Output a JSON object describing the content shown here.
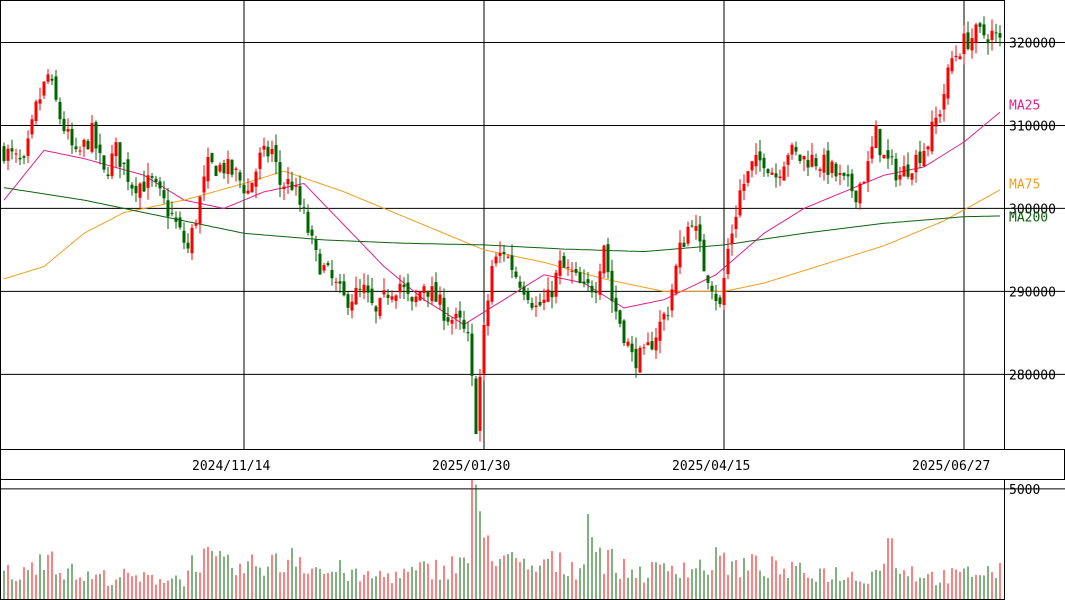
{
  "chart_data": {
    "type": "candlestick",
    "title": "",
    "colors": {
      "up": "#ff0000",
      "down": "#006400",
      "ma25": "#e0208c",
      "ma75": "#f0a020",
      "ma200": "#106010",
      "grid": "#000000"
    },
    "price_axis": {
      "ylim": [
        271000,
        325000
      ],
      "ticks": [
        280000,
        290000,
        300000,
        310000,
        320000
      ],
      "tick_labels": [
        "280000",
        "290000",
        "300000",
        "310000",
        "320000"
      ]
    },
    "volume_axis": {
      "ylim": [
        0,
        5400
      ],
      "ticks": [
        5000
      ],
      "tick_labels": [
        "5000"
      ]
    },
    "date_labels": [
      "2024/11/14",
      "2025/01/30",
      "2025/04/15",
      "2025/06/27"
    ],
    "date_label_index": [
      60,
      120,
      180,
      240
    ],
    "moving_averages": [
      {
        "name": "MA25",
        "color": "#e0208c",
        "label_value": 312500,
        "anchors": [
          [
            0,
            301000
          ],
          [
            10,
            307000
          ],
          [
            20,
            306000
          ],
          [
            35,
            304000
          ],
          [
            45,
            301000
          ],
          [
            55,
            300000
          ],
          [
            65,
            302000
          ],
          [
            75,
            303000
          ],
          [
            85,
            298000
          ],
          [
            95,
            293000
          ],
          [
            105,
            289000
          ],
          [
            115,
            286000
          ],
          [
            125,
            289000
          ],
          [
            135,
            292000
          ],
          [
            145,
            291000
          ],
          [
            155,
            288000
          ],
          [
            165,
            289000
          ],
          [
            178,
            292000
          ],
          [
            190,
            297000
          ],
          [
            200,
            300000
          ],
          [
            210,
            302000
          ],
          [
            220,
            304000
          ],
          [
            230,
            305000
          ],
          [
            240,
            308000
          ],
          [
            250,
            312000
          ]
        ]
      },
      {
        "name": "MA75",
        "color": "#f0a020",
        "label_value": 303000,
        "anchors": [
          [
            0,
            291500
          ],
          [
            10,
            293000
          ],
          [
            20,
            297000
          ],
          [
            30,
            299500
          ],
          [
            45,
            301000
          ],
          [
            60,
            303000
          ],
          [
            70,
            304500
          ],
          [
            85,
            302000
          ],
          [
            100,
            299000
          ],
          [
            120,
            295000
          ],
          [
            135,
            293500
          ],
          [
            150,
            291500
          ],
          [
            165,
            290000
          ],
          [
            180,
            290000
          ],
          [
            190,
            291000
          ],
          [
            200,
            292500
          ],
          [
            220,
            295500
          ],
          [
            235,
            298500
          ],
          [
            250,
            302500
          ]
        ]
      },
      {
        "name": "MA200",
        "color": "#106010",
        "label_value": 299000,
        "anchors": [
          [
            0,
            302500
          ],
          [
            20,
            301000
          ],
          [
            40,
            299000
          ],
          [
            60,
            297000
          ],
          [
            80,
            296200
          ],
          [
            100,
            295800
          ],
          [
            120,
            295600
          ],
          [
            140,
            295100
          ],
          [
            160,
            294800
          ],
          [
            180,
            295600
          ],
          [
            200,
            297000
          ],
          [
            220,
            298200
          ],
          [
            240,
            299000
          ],
          [
            250,
            299100
          ]
        ]
      }
    ],
    "candle_anchors": [
      [
        0,
        307000
      ],
      [
        5,
        305000
      ],
      [
        8,
        312000
      ],
      [
        11,
        316000
      ],
      [
        14,
        311000
      ],
      [
        18,
        306000
      ],
      [
        22,
        309000
      ],
      [
        25,
        304000
      ],
      [
        28,
        307000
      ],
      [
        32,
        303000
      ],
      [
        37,
        303000
      ],
      [
        42,
        299000
      ],
      [
        46,
        295000
      ],
      [
        48,
        299000
      ],
      [
        51,
        305000
      ],
      [
        55,
        305000
      ],
      [
        58,
        304000
      ],
      [
        61,
        302000
      ],
      [
        64,
        306000
      ],
      [
        67,
        307000
      ],
      [
        69,
        303000
      ],
      [
        72,
        303000
      ],
      [
        75,
        299000
      ],
      [
        78,
        294000
      ],
      [
        81,
        292000
      ],
      [
        85,
        289000
      ],
      [
        90,
        290000
      ],
      [
        93,
        287000
      ],
      [
        96,
        290000
      ],
      [
        99,
        291000
      ],
      [
        102,
        288000
      ],
      [
        105,
        291000
      ],
      [
        108,
        289000
      ],
      [
        111,
        287000
      ],
      [
        114,
        286000
      ],
      [
        116,
        284000
      ],
      [
        118,
        274000
      ],
      [
        120,
        285000
      ],
      [
        122,
        293000
      ],
      [
        125,
        295000
      ],
      [
        128,
        292000
      ],
      [
        131,
        290000
      ],
      [
        133,
        288000
      ],
      [
        136,
        289000
      ],
      [
        139,
        293000
      ],
      [
        142,
        292000
      ],
      [
        145,
        290000
      ],
      [
        148,
        291000
      ],
      [
        150,
        296000
      ],
      [
        152,
        289000
      ],
      [
        155,
        285000
      ],
      [
        157,
        282000
      ],
      [
        160,
        282000
      ],
      [
        163,
        285000
      ],
      [
        166,
        288000
      ],
      [
        169,
        295000
      ],
      [
        172,
        299000
      ],
      [
        175,
        293000
      ],
      [
        177,
        291000
      ],
      [
        179,
        288000
      ],
      [
        181,
        295000
      ],
      [
        184,
        302000
      ],
      [
        187,
        305000
      ],
      [
        190,
        306000
      ],
      [
        193,
        304000
      ],
      [
        196,
        307000
      ],
      [
        199,
        306000
      ],
      [
        202,
        306000
      ],
      [
        206,
        305000
      ],
      [
        210,
        303000
      ],
      [
        213,
        302000
      ],
      [
        216,
        305000
      ],
      [
        218,
        309000
      ],
      [
        220,
        306000
      ],
      [
        224,
        304000
      ],
      [
        228,
        306000
      ],
      [
        231,
        308000
      ],
      [
        234,
        312000
      ],
      [
        237,
        318000
      ],
      [
        240,
        320000
      ],
      [
        243,
        321000
      ],
      [
        246,
        321000
      ],
      [
        247,
        321000
      ],
      [
        249,
        320000
      ]
    ],
    "volume_anchors": [
      [
        0,
        1200
      ],
      [
        6,
        1100
      ],
      [
        9,
        2200
      ],
      [
        12,
        2000
      ],
      [
        15,
        1300
      ],
      [
        20,
        1000
      ],
      [
        25,
        1000
      ],
      [
        30,
        1000
      ],
      [
        35,
        900
      ],
      [
        40,
        1000
      ],
      [
        45,
        900
      ],
      [
        48,
        1900
      ],
      [
        52,
        1700
      ],
      [
        55,
        1500
      ],
      [
        60,
        1300
      ],
      [
        65,
        1700
      ],
      [
        70,
        1500
      ],
      [
        72,
        2300
      ],
      [
        75,
        1700
      ],
      [
        78,
        1400
      ],
      [
        80,
        1200
      ],
      [
        85,
        1300
      ],
      [
        88,
        1000
      ],
      [
        92,
        1000
      ],
      [
        95,
        1100
      ],
      [
        100,
        1100
      ],
      [
        105,
        1300
      ],
      [
        108,
        1400
      ],
      [
        112,
        1500
      ],
      [
        116,
        1900
      ],
      [
        117,
        5300
      ],
      [
        119,
        3000
      ],
      [
        121,
        2600
      ],
      [
        124,
        2000
      ],
      [
        128,
        1500
      ],
      [
        132,
        1300
      ],
      [
        136,
        1700
      ],
      [
        140,
        1500
      ],
      [
        144,
        1400
      ],
      [
        146,
        3600
      ],
      [
        149,
        2000
      ],
      [
        152,
        1700
      ],
      [
        155,
        1300
      ],
      [
        160,
        1200
      ],
      [
        164,
        1300
      ],
      [
        168,
        1600
      ],
      [
        172,
        1400
      ],
      [
        176,
        1500
      ],
      [
        180,
        1900
      ],
      [
        182,
        1400
      ],
      [
        186,
        1500
      ],
      [
        190,
        1500
      ],
      [
        194,
        1300
      ],
      [
        198,
        1200
      ],
      [
        202,
        1200
      ],
      [
        206,
        1200
      ],
      [
        210,
        1100
      ],
      [
        214,
        1000
      ],
      [
        218,
        1200
      ],
      [
        221,
        2700
      ],
      [
        224,
        1500
      ],
      [
        228,
        1200
      ],
      [
        232,
        1000
      ],
      [
        236,
        1000
      ],
      [
        240,
        1100
      ],
      [
        244,
        1300
      ],
      [
        249,
        1200
      ]
    ]
  }
}
